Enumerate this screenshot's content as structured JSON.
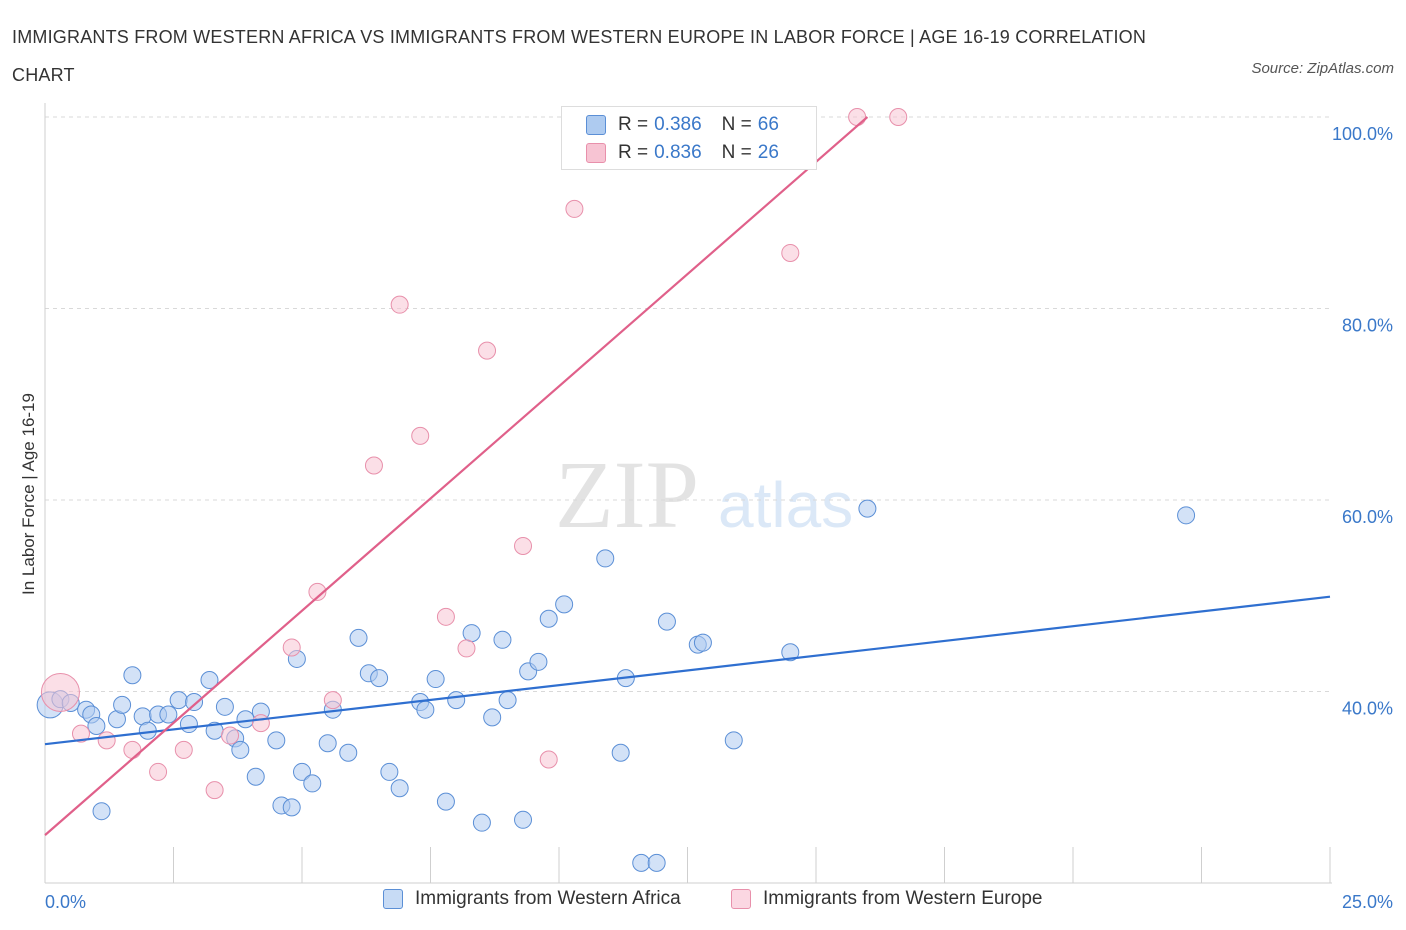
{
  "header": {
    "title": "IMMIGRANTS FROM WESTERN AFRICA VS IMMIGRANTS FROM WESTERN EUROPE IN LABOR FORCE | AGE 16-19 CORRELATION CHART",
    "source": "Source: ZipAtlas.com"
  },
  "legend": {
    "r_label": "R =",
    "n_label": "N =",
    "series": [
      {
        "name": "Immigrants from Western Africa",
        "r": "0.386",
        "n": "66"
      },
      {
        "name": "Immigrants from Western Europe",
        "r": "0.836",
        "n": "26"
      }
    ]
  },
  "watermark": {
    "zip": "ZIP",
    "atlas": "atlas"
  },
  "colors": {
    "blue_fill": "#aecbf0",
    "blue_stroke": "#5b8fd6",
    "blue_line": "#2f6fd0",
    "pink_fill": "#f7c4d3",
    "pink_stroke": "#e890ab",
    "pink_line": "#e0608a",
    "tick_text": "#3a78c9",
    "grid": "#d9d9d9"
  },
  "chart_data": {
    "type": "scatter",
    "title": "IMMIGRANTS FROM WESTERN AFRICA VS IMMIGRANTS FROM WESTERN EUROPE IN LABOR FORCE | AGE 16-19 CORRELATION CHART",
    "xlabel": "",
    "ylabel": "In Labor Force | Age 16-19",
    "xlim": [
      0,
      25
    ],
    "ylim": [
      20,
      100
    ],
    "x_tick_labels": [
      "0.0%",
      "25.0%"
    ],
    "y_ticks": [
      40,
      60,
      80,
      100
    ],
    "y_tick_labels": [
      "40.0%",
      "60.0%",
      "80.0%",
      "100.0%"
    ],
    "grid": true,
    "legend_position": "top-center",
    "series": [
      {
        "name": "Immigrants from Western Africa",
        "color": "#aecbf0",
        "trend": {
          "x": [
            0,
            25
          ],
          "y": [
            34.5,
            49.9
          ]
        },
        "points": [
          [
            0.1,
            38.6
          ],
          [
            0.3,
            39.2
          ],
          [
            0.5,
            38.8
          ],
          [
            0.8,
            38.1
          ],
          [
            0.9,
            37.6
          ],
          [
            1.0,
            36.4
          ],
          [
            1.1,
            27.5
          ],
          [
            1.4,
            37.1
          ],
          [
            1.5,
            38.6
          ],
          [
            1.7,
            41.7
          ],
          [
            1.9,
            37.4
          ],
          [
            2.0,
            35.9
          ],
          [
            2.2,
            37.6
          ],
          [
            2.4,
            37.6
          ],
          [
            2.6,
            39.1
          ],
          [
            2.8,
            36.6
          ],
          [
            2.9,
            38.9
          ],
          [
            3.2,
            41.2
          ],
          [
            3.3,
            35.9
          ],
          [
            3.5,
            38.4
          ],
          [
            3.7,
            35.1
          ],
          [
            3.8,
            33.9
          ],
          [
            3.9,
            37.1
          ],
          [
            4.1,
            31.1
          ],
          [
            4.2,
            37.9
          ],
          [
            4.5,
            34.9
          ],
          [
            4.6,
            28.1
          ],
          [
            4.8,
            27.9
          ],
          [
            4.9,
            43.4
          ],
          [
            5.0,
            31.6
          ],
          [
            5.2,
            30.4
          ],
          [
            5.5,
            34.6
          ],
          [
            5.6,
            38.1
          ],
          [
            5.9,
            33.6
          ],
          [
            6.1,
            45.6
          ],
          [
            6.3,
            41.9
          ],
          [
            6.5,
            41.4
          ],
          [
            6.7,
            31.6
          ],
          [
            6.9,
            29.9
          ],
          [
            7.3,
            38.9
          ],
          [
            7.4,
            38.1
          ],
          [
            7.6,
            41.3
          ],
          [
            7.8,
            28.5
          ],
          [
            8.0,
            39.1
          ],
          [
            8.3,
            46.1
          ],
          [
            8.5,
            26.3
          ],
          [
            8.7,
            37.3
          ],
          [
            8.9,
            45.4
          ],
          [
            9.0,
            39.1
          ],
          [
            9.3,
            26.6
          ],
          [
            9.4,
            42.1
          ],
          [
            9.6,
            43.1
          ],
          [
            9.8,
            47.6
          ],
          [
            10.1,
            49.1
          ],
          [
            10.9,
            53.9
          ],
          [
            11.2,
            33.6
          ],
          [
            11.3,
            41.4
          ],
          [
            11.6,
            22.1
          ],
          [
            11.9,
            22.1
          ],
          [
            12.1,
            47.3
          ],
          [
            12.7,
            44.9
          ],
          [
            12.8,
            45.1
          ],
          [
            13.4,
            34.9
          ],
          [
            14.5,
            44.1
          ],
          [
            16.0,
            59.1
          ],
          [
            22.2,
            58.4
          ]
        ]
      },
      {
        "name": "Immigrants from Western Europe",
        "color": "#f7c4d3",
        "trend": {
          "x": [
            0,
            16
          ],
          "y": [
            25.0,
            100.0
          ]
        },
        "points": [
          [
            0.3,
            39.9
          ],
          [
            0.7,
            35.6
          ],
          [
            1.2,
            34.9
          ],
          [
            1.7,
            33.9
          ],
          [
            2.2,
            31.6
          ],
          [
            2.7,
            33.9
          ],
          [
            3.3,
            29.7
          ],
          [
            3.6,
            35.4
          ],
          [
            4.2,
            36.7
          ],
          [
            4.8,
            44.6
          ],
          [
            5.3,
            50.4
          ],
          [
            5.6,
            39.1
          ],
          [
            6.4,
            63.6
          ],
          [
            6.9,
            80.4
          ],
          [
            7.3,
            66.7
          ],
          [
            7.8,
            47.8
          ],
          [
            8.2,
            44.5
          ],
          [
            8.6,
            75.6
          ],
          [
            9.3,
            55.2
          ],
          [
            9.8,
            32.9
          ],
          [
            10.3,
            90.4
          ],
          [
            10.9,
            100.0
          ],
          [
            11.9,
            100.0
          ],
          [
            14.5,
            85.8
          ],
          [
            15.8,
            100.0
          ],
          [
            16.6,
            100.0
          ]
        ]
      }
    ]
  }
}
